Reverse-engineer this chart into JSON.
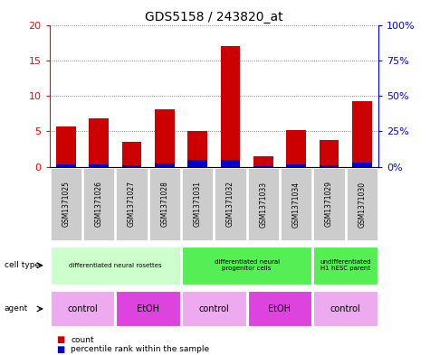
{
  "title": "GDS5158 / 243820_at",
  "samples": [
    "GSM1371025",
    "GSM1371026",
    "GSM1371027",
    "GSM1371028",
    "GSM1371031",
    "GSM1371032",
    "GSM1371033",
    "GSM1371034",
    "GSM1371029",
    "GSM1371030"
  ],
  "counts": [
    5.7,
    6.8,
    3.5,
    8.1,
    5.0,
    17.0,
    1.5,
    5.2,
    3.8,
    9.2
  ],
  "percentile_vals": [
    1.8,
    1.9,
    1.1,
    2.5,
    4.8,
    4.8,
    0.5,
    1.8,
    0.9,
    2.8
  ],
  "ylim_left": [
    0,
    20
  ],
  "ylim_right": [
    0,
    100
  ],
  "yticks_left": [
    0,
    5,
    10,
    15,
    20
  ],
  "yticks_right": [
    0,
    25,
    50,
    75,
    100
  ],
  "ytick_labels_right": [
    "0%",
    "25%",
    "50%",
    "75%",
    "100%"
  ],
  "bar_color": "#cc0000",
  "percentile_color": "#0000cc",
  "bar_width": 0.6,
  "cell_type_groups": [
    {
      "label": "differentiated neural rosettes",
      "start": 0,
      "end": 3,
      "color": "#ccffcc"
    },
    {
      "label": "differentiated neural\nprogenitor cells",
      "start": 4,
      "end": 7,
      "color": "#55ee55"
    },
    {
      "label": "undifferentiated\nH1 hESC parent",
      "start": 8,
      "end": 9,
      "color": "#55ee55"
    }
  ],
  "agent_groups": [
    {
      "label": "control",
      "start": 0,
      "end": 1,
      "color": "#eeaaee"
    },
    {
      "label": "EtOH",
      "start": 2,
      "end": 3,
      "color": "#dd44dd"
    },
    {
      "label": "control",
      "start": 4,
      "end": 5,
      "color": "#eeaaee"
    },
    {
      "label": "EtOH",
      "start": 6,
      "end": 7,
      "color": "#dd44dd"
    },
    {
      "label": "control",
      "start": 8,
      "end": 9,
      "color": "#eeaaee"
    }
  ],
  "sample_bg_color": "#cccccc",
  "grid_color": "#666666",
  "plot_bg": "#ffffff",
  "legend_count_label": "count",
  "legend_pct_label": "percentile rank within the sample"
}
